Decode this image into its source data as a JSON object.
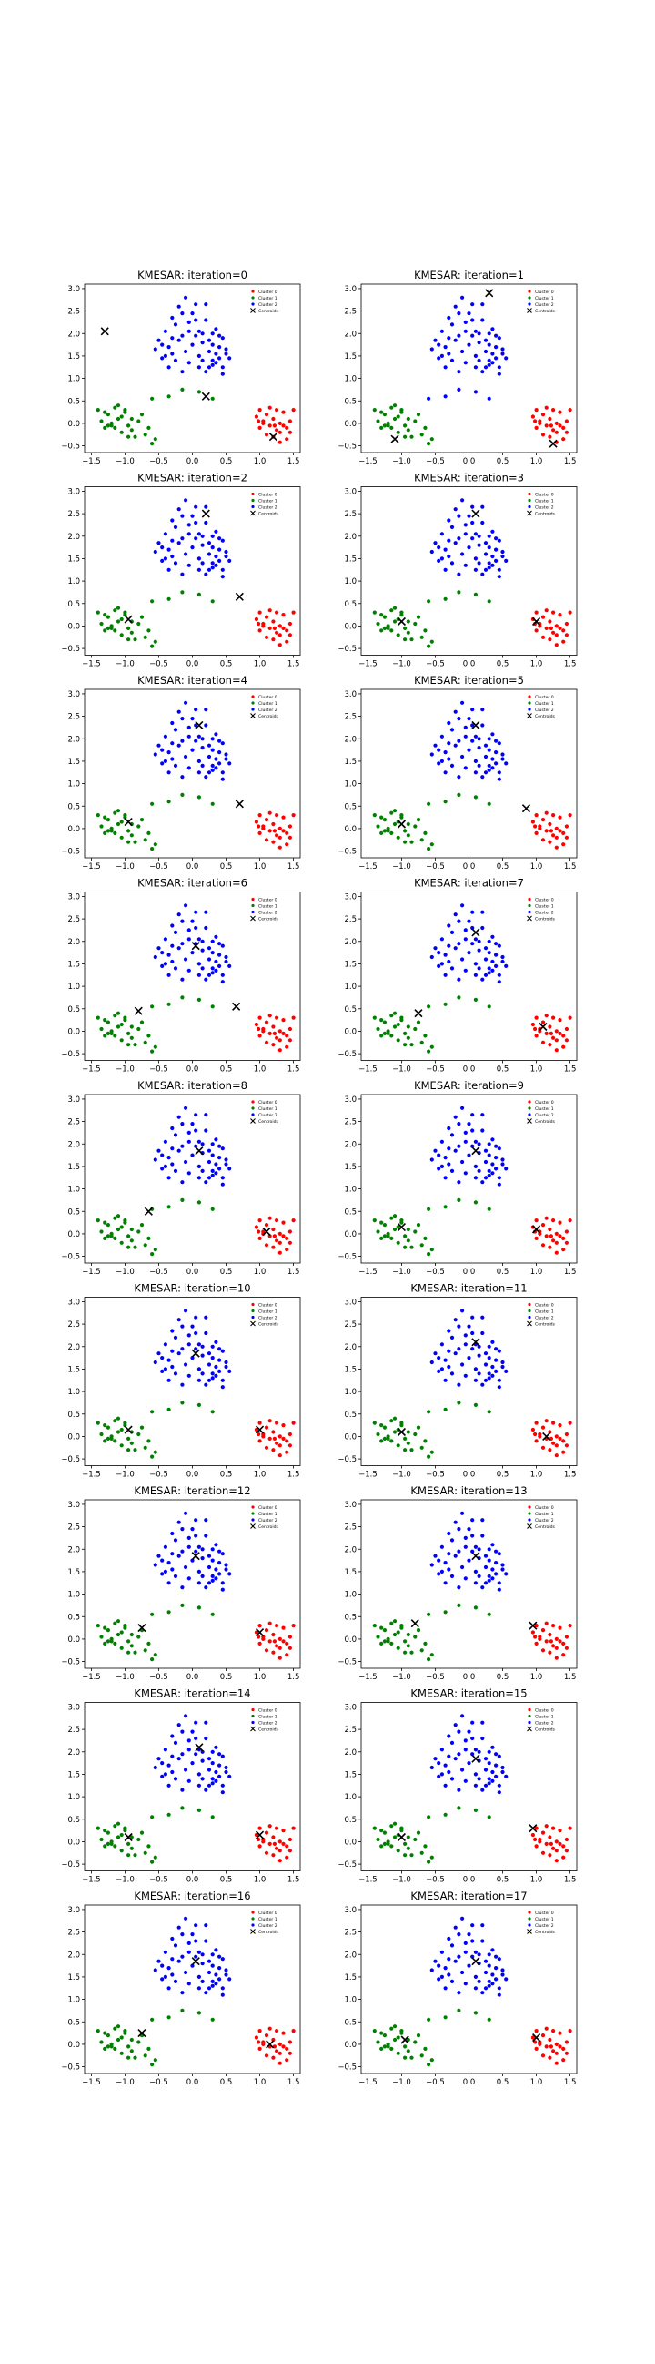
{
  "colors": {
    "cluster_0": "#ff0000",
    "cluster_1": "#008000",
    "cluster_2": "#0000ff",
    "centroid": "#000000",
    "axes": "#000000",
    "background": "#ffffff"
  },
  "chart_data": {
    "type": "scatter",
    "title_prefix": "KMESAR: iteration=",
    "xlim": [
      -1.6,
      1.6
    ],
    "ylim": [
      -0.65,
      3.1
    ],
    "xticks": [
      "−1.5",
      "−1.0",
      "−0.5",
      "0.0",
      "0.5",
      "1.0",
      "1.5"
    ],
    "xtick_values": [
      -1.5,
      -1.0,
      -0.5,
      0.0,
      0.5,
      1.0,
      1.5
    ],
    "yticks": [
      "−0.5",
      "0.0",
      "0.5",
      "1.0",
      "1.5",
      "2.0",
      "2.5",
      "3.0"
    ],
    "ytick_values": [
      -0.5,
      0.0,
      0.5,
      1.0,
      1.5,
      2.0,
      2.5,
      3.0
    ],
    "grid": false,
    "legend_position": "top-right",
    "legend": {
      "cluster_labels": [
        "Cluster 0",
        "Cluster 1",
        "Cluster 2"
      ],
      "centroids_label": "Centroids"
    },
    "points": {
      "right_group": [
        [
          0.95,
          0.15
        ],
        [
          1.0,
          0.3
        ],
        [
          1.05,
          0.05
        ],
        [
          1.1,
          0.2
        ],
        [
          1.15,
          -0.05
        ],
        [
          1.2,
          0.1
        ],
        [
          1.25,
          -0.15
        ],
        [
          1.3,
          0.0
        ],
        [
          1.35,
          0.25
        ],
        [
          1.4,
          -0.1
        ],
        [
          1.45,
          0.05
        ],
        [
          1.5,
          0.3
        ],
        [
          1.0,
          -0.1
        ],
        [
          1.1,
          -0.25
        ],
        [
          1.2,
          -0.3
        ],
        [
          1.3,
          -0.2
        ],
        [
          1.4,
          -0.35
        ],
        [
          1.15,
          0.35
        ],
        [
          1.25,
          0.3
        ],
        [
          1.05,
          0.0
        ],
        [
          1.35,
          -0.05
        ],
        [
          1.45,
          -0.2
        ],
        [
          0.98,
          0.05
        ],
        [
          1.22,
          -0.05
        ],
        [
          1.3,
          -0.42
        ]
      ],
      "left_group": [
        [
          -1.4,
          0.3
        ],
        [
          -1.35,
          0.05
        ],
        [
          -1.3,
          -0.1
        ],
        [
          -1.25,
          0.2
        ],
        [
          -1.2,
          0.0
        ],
        [
          -1.15,
          0.35
        ],
        [
          -1.1,
          0.1
        ],
        [
          -1.05,
          -0.2
        ],
        [
          -1.0,
          0.25
        ],
        [
          -0.95,
          -0.05
        ],
        [
          -0.9,
          0.1
        ],
        [
          -0.85,
          -0.3
        ],
        [
          -0.8,
          0.05
        ],
        [
          -0.75,
          0.2
        ],
        [
          -0.7,
          -0.25
        ],
        [
          -0.65,
          -0.1
        ],
        [
          -0.6,
          -0.45
        ],
        [
          -0.55,
          -0.35
        ],
        [
          -1.2,
          -0.05
        ],
        [
          -1.1,
          0.4
        ],
        [
          -1.0,
          0.3
        ],
        [
          -0.95,
          -0.3
        ],
        [
          -1.3,
          0.25
        ],
        [
          -0.9,
          -0.15
        ],
        [
          -1.15,
          -0.1
        ],
        [
          -1.25,
          -0.05
        ],
        [
          -1.05,
          0.15
        ]
      ],
      "top_group": [
        [
          -0.55,
          1.65
        ],
        [
          -0.5,
          1.85
        ],
        [
          -0.45,
          1.45
        ],
        [
          -0.4,
          2.05
        ],
        [
          -0.35,
          1.7
        ],
        [
          -0.3,
          1.55
        ],
        [
          -0.25,
          2.2
        ],
        [
          -0.2,
          1.85
        ],
        [
          -0.15,
          2.45
        ],
        [
          -0.1,
          1.6
        ],
        [
          -0.05,
          2.05
        ],
        [
          0.0,
          1.75
        ],
        [
          0.05,
          2.3
        ],
        [
          0.1,
          1.5
        ],
        [
          0.15,
          2.0
        ],
        [
          0.2,
          2.65
        ],
        [
          0.25,
          1.85
        ],
        [
          0.3,
          1.4
        ],
        [
          0.35,
          2.1
        ],
        [
          0.4,
          1.7
        ],
        [
          0.45,
          1.25
        ],
        [
          0.5,
          1.55
        ],
        [
          -0.1,
          2.8
        ],
        [
          0.05,
          2.65
        ],
        [
          -0.2,
          2.6
        ],
        [
          -0.3,
          1.9
        ],
        [
          0.2,
          1.15
        ],
        [
          0.3,
          1.3
        ],
        [
          0.4,
          1.45
        ],
        [
          0.45,
          1.9
        ],
        [
          0.35,
          1.55
        ],
        [
          0.1,
          1.25
        ],
        [
          -0.05,
          1.35
        ],
        [
          -0.15,
          1.15
        ],
        [
          -0.25,
          1.4
        ],
        [
          0.25,
          1.6
        ],
        [
          0.0,
          2.45
        ],
        [
          0.15,
          1.4
        ],
        [
          0.3,
          1.75
        ],
        [
          -0.4,
          1.5
        ],
        [
          0.5,
          1.65
        ],
        [
          -0.3,
          2.35
        ],
        [
          0.05,
          1.95
        ],
        [
          -0.05,
          2.25
        ],
        [
          0.2,
          2.3
        ],
        [
          -0.45,
          1.75
        ],
        [
          0.3,
          2.0
        ],
        [
          0.25,
          1.25
        ],
        [
          0.4,
          1.95
        ],
        [
          0.55,
          1.45
        ],
        [
          0.1,
          2.05
        ],
        [
          -0.35,
          1.25
        ],
        [
          0.15,
          1.8
        ],
        [
          -0.15,
          1.95
        ],
        [
          0.35,
          1.35
        ],
        [
          0.45,
          1.1
        ]
      ],
      "mid_group": [
        [
          -0.6,
          0.55
        ],
        [
          -0.15,
          0.75
        ],
        [
          0.3,
          0.55
        ],
        [
          -0.35,
          0.6
        ],
        [
          0.1,
          0.7
        ]
      ]
    },
    "panels": [
      {
        "iteration": "0",
        "groups": {
          "right_group": 0,
          "left_group": 1,
          "top_group": 2,
          "mid_group": 1
        },
        "centroids": [
          [
            -1.3,
            2.05
          ],
          [
            0.2,
            0.6
          ],
          [
            1.2,
            -0.3
          ]
        ]
      },
      {
        "iteration": "1",
        "groups": {
          "right_group": 0,
          "left_group": 1,
          "top_group": 2,
          "mid_group": 2
        },
        "centroids": [
          [
            0.3,
            2.9
          ],
          [
            -1.1,
            -0.35
          ],
          [
            1.25,
            -0.45
          ]
        ]
      },
      {
        "iteration": "2",
        "groups": {
          "right_group": 0,
          "left_group": 1,
          "top_group": 2,
          "mid_group": 1
        },
        "centroids": [
          [
            0.2,
            2.5
          ],
          [
            -0.95,
            0.15
          ],
          [
            0.7,
            0.65
          ]
        ]
      },
      {
        "iteration": "3",
        "groups": {
          "right_group": 0,
          "left_group": 1,
          "top_group": 2,
          "mid_group": 1
        },
        "centroids": [
          [
            0.1,
            2.5
          ],
          [
            -1.0,
            0.1
          ],
          [
            1.0,
            0.1
          ]
        ]
      },
      {
        "iteration": "4",
        "groups": {
          "right_group": 0,
          "left_group": 1,
          "top_group": 2,
          "mid_group": 1
        },
        "centroids": [
          [
            0.1,
            2.3
          ],
          [
            -0.95,
            0.15
          ],
          [
            0.7,
            0.55
          ]
        ]
      },
      {
        "iteration": "5",
        "groups": {
          "right_group": 0,
          "left_group": 1,
          "top_group": 2,
          "mid_group": 1
        },
        "centroids": [
          [
            0.1,
            2.3
          ],
          [
            -1.0,
            0.1
          ],
          [
            0.85,
            0.45
          ]
        ]
      },
      {
        "iteration": "6",
        "groups": {
          "right_group": 0,
          "left_group": 1,
          "top_group": 2,
          "mid_group": 1
        },
        "centroids": [
          [
            0.05,
            1.9
          ],
          [
            -0.8,
            0.45
          ],
          [
            0.65,
            0.55
          ]
        ]
      },
      {
        "iteration": "7",
        "groups": {
          "right_group": 0,
          "left_group": 1,
          "top_group": 2,
          "mid_group": 1
        },
        "centroids": [
          [
            0.1,
            2.2
          ],
          [
            -0.75,
            0.4
          ],
          [
            1.1,
            0.1
          ]
        ]
      },
      {
        "iteration": "8",
        "groups": {
          "right_group": 0,
          "left_group": 1,
          "top_group": 2,
          "mid_group": 1
        },
        "centroids": [
          [
            0.1,
            1.85
          ],
          [
            -0.65,
            0.5
          ],
          [
            1.1,
            0.05
          ]
        ]
      },
      {
        "iteration": "9",
        "groups": {
          "right_group": 0,
          "left_group": 1,
          "top_group": 2,
          "mid_group": 1
        },
        "centroids": [
          [
            0.1,
            1.85
          ],
          [
            -1.0,
            0.15
          ],
          [
            1.0,
            0.1
          ]
        ]
      },
      {
        "iteration": "10",
        "groups": {
          "right_group": 0,
          "left_group": 1,
          "top_group": 2,
          "mid_group": 1
        },
        "centroids": [
          [
            0.05,
            1.85
          ],
          [
            -0.95,
            0.15
          ],
          [
            1.0,
            0.15
          ]
        ]
      },
      {
        "iteration": "11",
        "groups": {
          "right_group": 0,
          "left_group": 1,
          "top_group": 2,
          "mid_group": 1
        },
        "centroids": [
          [
            0.1,
            2.1
          ],
          [
            -1.0,
            0.1
          ],
          [
            1.15,
            0.0
          ]
        ]
      },
      {
        "iteration": "12",
        "groups": {
          "right_group": 0,
          "left_group": 1,
          "top_group": 2,
          "mid_group": 1
        },
        "centroids": [
          [
            0.05,
            1.85
          ],
          [
            -0.75,
            0.25
          ],
          [
            1.0,
            0.15
          ]
        ]
      },
      {
        "iteration": "13",
        "groups": {
          "right_group": 0,
          "left_group": 1,
          "top_group": 2,
          "mid_group": 1
        },
        "centroids": [
          [
            0.1,
            1.85
          ],
          [
            -0.8,
            0.35
          ],
          [
            0.95,
            0.3
          ]
        ]
      },
      {
        "iteration": "14",
        "groups": {
          "right_group": 0,
          "left_group": 1,
          "top_group": 2,
          "mid_group": 1
        },
        "centroids": [
          [
            0.1,
            2.1
          ],
          [
            -0.95,
            0.1
          ],
          [
            1.0,
            0.15
          ]
        ]
      },
      {
        "iteration": "15",
        "groups": {
          "right_group": 0,
          "left_group": 1,
          "top_group": 2,
          "mid_group": 1
        },
        "centroids": [
          [
            0.1,
            1.85
          ],
          [
            -1.0,
            0.1
          ],
          [
            0.95,
            0.3
          ]
        ]
      },
      {
        "iteration": "16",
        "groups": {
          "right_group": 0,
          "left_group": 1,
          "top_group": 2,
          "mid_group": 1
        },
        "centroids": [
          [
            0.05,
            1.85
          ],
          [
            -0.75,
            0.25
          ],
          [
            1.15,
            0.0
          ]
        ]
      },
      {
        "iteration": "17",
        "groups": {
          "right_group": 0,
          "left_group": 1,
          "top_group": 2,
          "mid_group": 1
        },
        "centroids": [
          [
            0.1,
            1.85
          ],
          [
            -0.95,
            0.1
          ],
          [
            1.0,
            0.15
          ]
        ]
      }
    ]
  }
}
